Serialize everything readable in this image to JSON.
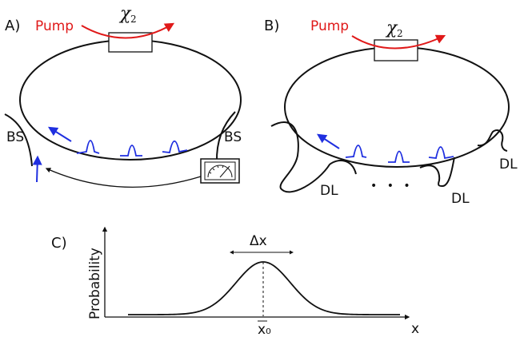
{
  "panel_a": {
    "panel_label": "A)",
    "pump_label": "Pump",
    "chi_symbol": "χ",
    "chi_subscript": "2",
    "bs_left": "BS",
    "bs_right": "BS"
  },
  "panel_b": {
    "panel_label": "B)",
    "pump_label": "Pump",
    "chi_symbol": "χ",
    "chi_subscript": "2",
    "delay_line_left": "DL",
    "delay_line_middle": "DL",
    "delay_line_right": "DL",
    "ellipsis": "• • •"
  },
  "panel_c": {
    "panel_label": "C)",
    "ylabel": "Probability",
    "xlabel": "x",
    "width_label": "Δx",
    "mean_label": "x₀"
  },
  "colors": {
    "pump": "#e01919",
    "pulse": "#1f2fe0",
    "line": "#111111"
  },
  "icons": [
    "detector-meter-icon",
    "beam-splitter-icon"
  ]
}
